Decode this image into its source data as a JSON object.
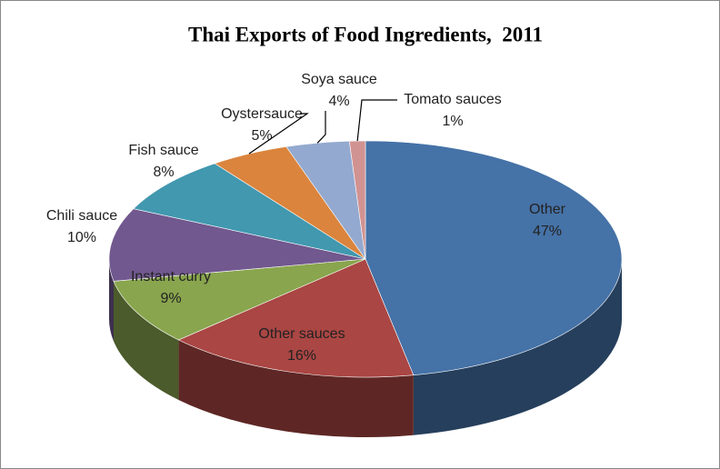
{
  "chart_data": {
    "type": "pie",
    "title": "Thai Exports of Food Ingredients,  2011",
    "categories": [
      "Other",
      "Other sauces",
      "Instant curry",
      "Chili sauce",
      "Fish sauce",
      "Oystersauce",
      "Soya sauce",
      "Tomato sauces"
    ],
    "values": [
      47,
      16,
      9,
      10,
      8,
      5,
      4,
      1
    ],
    "value_labels": [
      "47%",
      "16%",
      "9%",
      "10%",
      "8%",
      "5%",
      "4%",
      "1%"
    ],
    "colors": [
      "#4572a7",
      "#aa4643",
      "#89a54e",
      "#71588f",
      "#4198af",
      "#db843d",
      "#93a9cf",
      "#d19392"
    ]
  }
}
